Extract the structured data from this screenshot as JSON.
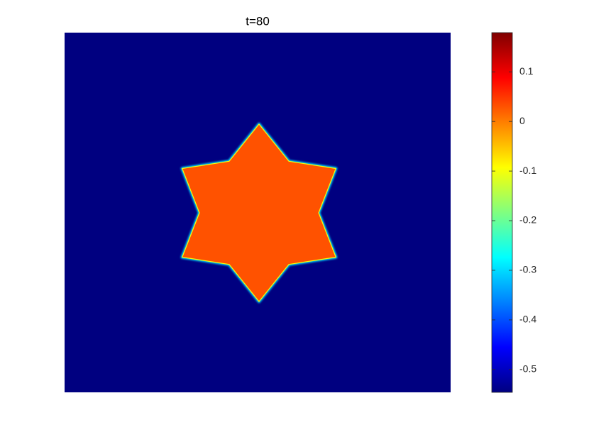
{
  "chart_data": {
    "type": "heatmap",
    "title": "t=80",
    "colormap": "jet",
    "clim": [
      -0.546,
      0.179
    ],
    "cticks": [
      0.1,
      0,
      -0.1,
      -0.2,
      -0.3,
      -0.4,
      -0.5
    ],
    "field": {
      "outside": -0.546,
      "inside": 0.03
    }
  }
}
